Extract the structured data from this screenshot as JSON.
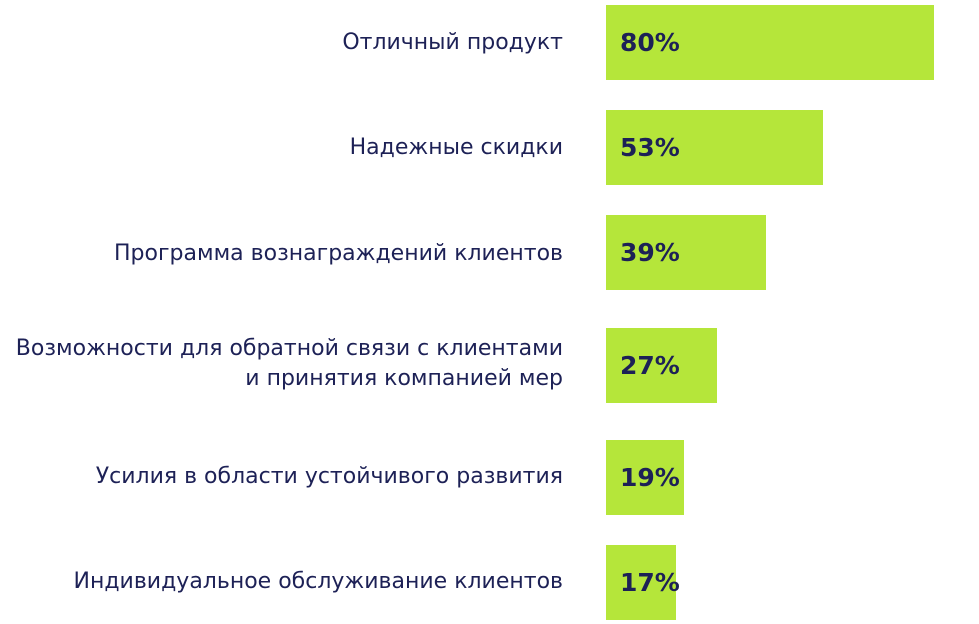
{
  "chart_data": {
    "type": "bar",
    "orientation": "horizontal",
    "categories": [
      "Отличный продукт",
      "Надежные скидки",
      "Программа вознаграждений клиентов",
      "Возможности для обратной связи с клиентами и принятия компанией мер",
      "Усилия в области устойчивого развития",
      "Индивидуальное обслуживание клиентов"
    ],
    "values": [
      80,
      53,
      39,
      27,
      19,
      17
    ],
    "value_labels": [
      "80%",
      "53%",
      "39%",
      "27%",
      "19%",
      "17%"
    ],
    "value_unit": "%",
    "xlim": [
      0,
      100
    ],
    "title": "",
    "xlabel": "",
    "ylabel": "",
    "grid": false,
    "legend": "none",
    "colors": {
      "bar": "#b5e63a",
      "text": "#1d2156"
    }
  }
}
